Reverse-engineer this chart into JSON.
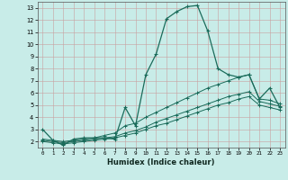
{
  "xlabel": "Humidex (Indice chaleur)",
  "bg_color": "#c8ece8",
  "grid_color": "#b0b0b0",
  "line_color": "#1a6b5a",
  "xlim": [
    -0.5,
    23.5
  ],
  "ylim": [
    1.5,
    13.5
  ],
  "xticks": [
    0,
    1,
    2,
    3,
    4,
    5,
    6,
    7,
    8,
    9,
    10,
    11,
    12,
    13,
    14,
    15,
    16,
    17,
    18,
    19,
    20,
    21,
    22,
    23
  ],
  "yticks": [
    2,
    3,
    4,
    5,
    6,
    7,
    8,
    9,
    10,
    11,
    12,
    13
  ],
  "curve1_x": [
    0,
    1,
    2,
    3,
    4,
    5,
    6,
    7,
    8,
    9,
    10,
    11,
    12,
    13,
    14,
    15,
    16,
    17,
    18,
    19,
    20,
    21,
    22,
    23
  ],
  "curve1_y": [
    3.0,
    2.1,
    1.7,
    2.2,
    2.3,
    2.3,
    2.3,
    2.2,
    4.8,
    3.3,
    7.5,
    9.2,
    12.1,
    12.7,
    13.1,
    13.2,
    11.1,
    8.0,
    7.5,
    7.3,
    7.5,
    5.5,
    6.4,
    4.8
  ],
  "curve2_x": [
    0,
    1,
    2,
    3,
    4,
    5,
    6,
    7,
    8,
    9,
    10,
    11,
    12,
    13,
    14,
    15,
    16,
    17,
    18,
    19,
    20,
    21,
    22,
    23
  ],
  "curve2_y": [
    2.2,
    2.1,
    2.0,
    2.1,
    2.2,
    2.3,
    2.5,
    2.7,
    3.3,
    3.5,
    4.0,
    4.4,
    4.8,
    5.2,
    5.6,
    6.0,
    6.4,
    6.7,
    7.0,
    7.3,
    7.5,
    5.5,
    5.4,
    5.1
  ],
  "curve3_x": [
    0,
    1,
    2,
    3,
    4,
    5,
    6,
    7,
    8,
    9,
    10,
    11,
    12,
    13,
    14,
    15,
    16,
    17,
    18,
    19,
    20,
    21,
    22,
    23
  ],
  "curve3_y": [
    2.1,
    2.0,
    1.9,
    2.0,
    2.1,
    2.2,
    2.3,
    2.4,
    2.7,
    2.9,
    3.2,
    3.6,
    3.9,
    4.2,
    4.5,
    4.8,
    5.1,
    5.4,
    5.7,
    5.9,
    6.1,
    5.3,
    5.1,
    4.9
  ],
  "curve4_x": [
    0,
    1,
    2,
    3,
    4,
    5,
    6,
    7,
    8,
    9,
    10,
    11,
    12,
    13,
    14,
    15,
    16,
    17,
    18,
    19,
    20,
    21,
    22,
    23
  ],
  "curve4_y": [
    2.0,
    1.9,
    1.8,
    1.9,
    2.0,
    2.1,
    2.2,
    2.3,
    2.5,
    2.7,
    3.0,
    3.3,
    3.5,
    3.8,
    4.1,
    4.4,
    4.7,
    5.0,
    5.2,
    5.5,
    5.7,
    5.0,
    4.8,
    4.6
  ]
}
